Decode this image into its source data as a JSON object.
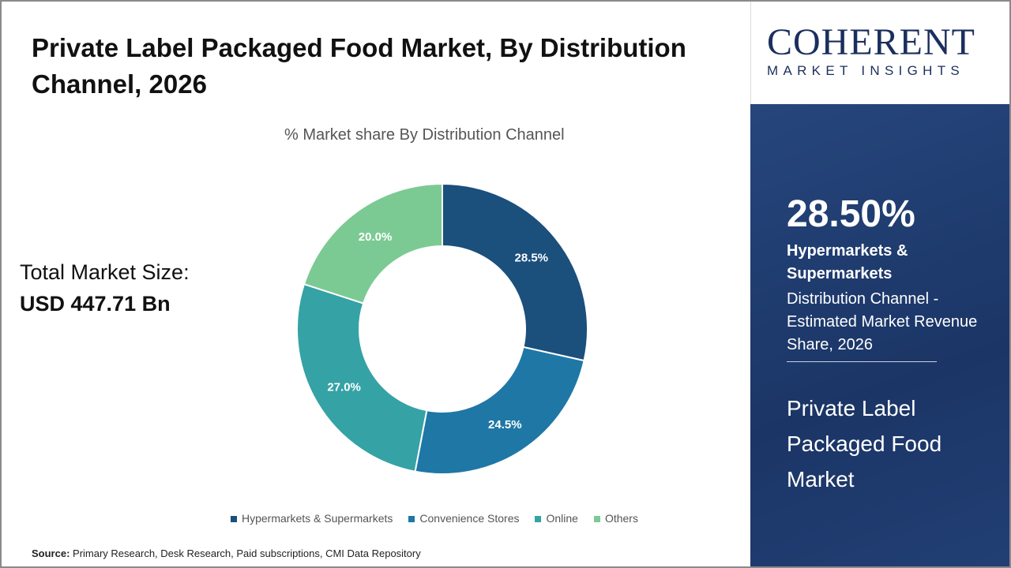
{
  "title": "Private Label Packaged Food Market, By Distribution Channel, 2026",
  "total": {
    "label": "Total Market Size:",
    "value": "USD 447.71 Bn"
  },
  "source": {
    "label": "Source:",
    "text": " Primary Research, Desk Research, Paid subscriptions, CMI Data Repository"
  },
  "logo": {
    "big": "COHERENT",
    "small": "MARKET INSIGHTS"
  },
  "panel": {
    "pct": "28.50%",
    "segment": "Hypermarkets & Supermarkets",
    "desc": "Distribution Channel - Estimated Market Revenue Share, 2026",
    "market": "Private Label Packaged Food Market"
  },
  "chart_data": {
    "type": "pie",
    "donut": true,
    "title": "% Market share By Distribution Channel",
    "categories": [
      "Hypermarkets & Supermarkets",
      "Convenience Stores",
      "Online",
      "Others"
    ],
    "values": [
      28.5,
      24.5,
      27.0,
      20.0
    ],
    "labels": [
      "28.5%",
      "24.5%",
      "27.0%",
      "20.0%"
    ],
    "colors": [
      "#1b4f7c",
      "#1f77a6",
      "#35a2a5",
      "#7cca93"
    ],
    "legend": "bottom"
  }
}
